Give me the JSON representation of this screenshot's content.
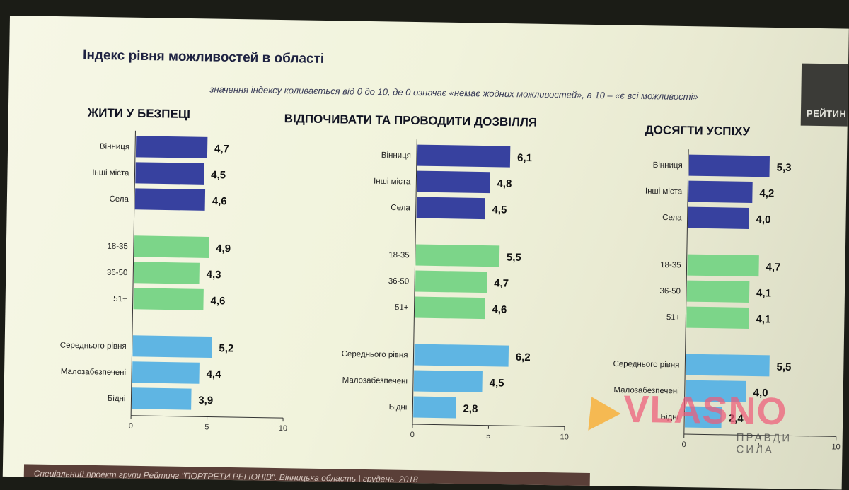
{
  "title": "Індекс рівня можливостей в області",
  "subtitle": "значення індексу коливається від 0 до 10, де 0 означає «немає жодних можливостей», а 10 – «є всі можливості»",
  "logo_text": "РЕЙТИН",
  "footer": "Спеціальний проект групи Рейтинг \"ПОРТРЕТИ РЕГІОНІВ\". Вінницька область | грудень, 2018",
  "watermark": {
    "brand": "VLASNO",
    "tagline": "ПРАВДИ СИЛА"
  },
  "colors": {
    "group1": "#37419f",
    "group2": "#7cd589",
    "group3": "#5fb5e3"
  },
  "chart_data": [
    {
      "type": "bar",
      "title": "ЖИТИ У БЕЗПЕЦІ",
      "categories": [
        "Вінниця",
        "Інші міста",
        "Села",
        "18-35",
        "36-50",
        "51+",
        "Середнього рівня",
        "Малозабезпечені",
        "Бідні"
      ],
      "groups": [
        0,
        0,
        0,
        1,
        1,
        1,
        2,
        2,
        2
      ],
      "values": [
        4.7,
        4.5,
        4.6,
        4.9,
        4.3,
        4.6,
        5.2,
        4.4,
        3.9
      ],
      "labels": [
        "4,7",
        "4,5",
        "4,6",
        "4,9",
        "4,3",
        "4,6",
        "5,2",
        "4,4",
        "3,9"
      ],
      "xlim": [
        0,
        10
      ],
      "ticks": [
        "0",
        "5",
        "10"
      ]
    },
    {
      "type": "bar",
      "title": "ВІДПОЧИВАТИ ТА ПРОВОДИТИ ДОЗВІЛЛЯ",
      "categories": [
        "Вінниця",
        "Інші міста",
        "Села",
        "18-35",
        "36-50",
        "51+",
        "Середнього рівня",
        "Малозабезпечені",
        "Бідні"
      ],
      "groups": [
        0,
        0,
        0,
        1,
        1,
        1,
        2,
        2,
        2
      ],
      "values": [
        6.1,
        4.8,
        4.5,
        5.5,
        4.7,
        4.6,
        6.2,
        4.5,
        2.8
      ],
      "labels": [
        "6,1",
        "4,8",
        "4,5",
        "5,5",
        "4,7",
        "4,6",
        "6,2",
        "4,5",
        "2,8"
      ],
      "xlim": [
        0,
        10
      ],
      "ticks": [
        "0",
        "5",
        "10"
      ]
    },
    {
      "type": "bar",
      "title": "ДОСЯГТИ УСПІХУ",
      "categories": [
        "Вінниця",
        "Інші міста",
        "Села",
        "18-35",
        "36-50",
        "51+",
        "Середнього рівня",
        "Малозабезпечені",
        "Бідні"
      ],
      "groups": [
        0,
        0,
        0,
        1,
        1,
        1,
        2,
        2,
        2
      ],
      "values": [
        5.3,
        4.2,
        4.0,
        4.7,
        4.1,
        4.1,
        5.5,
        4.0,
        2.4
      ],
      "labels": [
        "5,3",
        "4,2",
        "4,0",
        "4,7",
        "4,1",
        "4,1",
        "5,5",
        "4,0",
        "2,4"
      ],
      "xlim": [
        0,
        10
      ],
      "ticks": [
        "0",
        "5",
        "10"
      ]
    }
  ]
}
